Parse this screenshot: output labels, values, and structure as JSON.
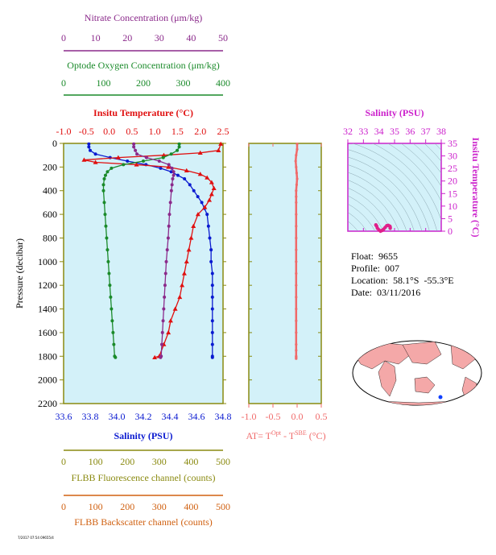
{
  "chart_data": [
    {
      "type": "line",
      "panel": "profile",
      "y_axis": {
        "label": "Pressure (decibar)",
        "range": [
          0,
          2200
        ],
        "inverted": true,
        "ticks": [
          0,
          200,
          400,
          600,
          800,
          1000,
          1200,
          1400,
          1600,
          1800,
          2000,
          2200
        ]
      },
      "axes": [
        {
          "key": "nitrate",
          "label": "Nitrate Concentration (μm/kg)",
          "range": [
            0,
            50
          ],
          "ticks": [
            0,
            10,
            20,
            30,
            40,
            50
          ],
          "color": "#8b2a8b"
        },
        {
          "key": "oxygen",
          "label": "Optode Oxygen Concentration (μm/kg)",
          "range": [
            0,
            400
          ],
          "ticks": [
            0,
            100,
            200,
            300,
            400
          ],
          "color": "#1a8a2a"
        },
        {
          "key": "temperature",
          "label": "Insitu Temperature (°C)",
          "range": [
            -1.0,
            2.5
          ],
          "ticks": [
            "-1.0",
            "-0.5",
            "0.0",
            "0.5",
            "1.0",
            "1.5",
            "2.0",
            "2.5"
          ],
          "color": "#e01010"
        },
        {
          "key": "salinity",
          "label": "Salinity (PSU)",
          "range": [
            33.6,
            34.8
          ],
          "ticks": [
            "33.6",
            "33.8",
            "34.0",
            "34.2",
            "34.4",
            "34.6",
            "34.8"
          ],
          "color": "#0a1ad0"
        },
        {
          "key": "fluorescence",
          "label": "FLBB Fluorescence channel (counts)",
          "range": [
            0,
            500
          ],
          "ticks": [
            0,
            100,
            200,
            300,
            400,
            500
          ],
          "color": "#8a8a10"
        },
        {
          "key": "backscatter",
          "label": "FLBB Backscatter channel (counts)",
          "range": [
            0,
            500
          ],
          "ticks": [
            0,
            100,
            200,
            300,
            400,
            500
          ],
          "color": "#d06010"
        }
      ],
      "series": [
        {
          "key": "salinity",
          "color": "#0a1ad0",
          "x": [
            33.79,
            33.79,
            33.8,
            33.84,
            33.95,
            34.08,
            34.22,
            34.33,
            34.41,
            34.46,
            34.51,
            34.55,
            34.58,
            34.61,
            34.64,
            34.66,
            34.68,
            34.69,
            34.7,
            34.71,
            34.71,
            34.72,
            34.72,
            34.72,
            34.72,
            34.72,
            34.72,
            34.72,
            34.72,
            34.72
          ],
          "y": [
            5,
            30,
            60,
            90,
            120,
            150,
            180,
            210,
            240,
            270,
            300,
            350,
            400,
            450,
            500,
            550,
            600,
            700,
            800,
            900,
            1000,
            1100,
            1200,
            1300,
            1400,
            1500,
            1600,
            1700,
            1800,
            1810
          ]
        },
        {
          "key": "temperature",
          "color": "#e01010",
          "x": [
            2.45,
            2.4,
            2.0,
            1.2,
            0.2,
            -0.55,
            -0.3,
            0.6,
            1.3,
            1.7,
            2.0,
            2.15,
            2.25,
            2.3,
            2.25,
            2.2,
            2.1,
            1.95,
            1.85,
            1.8,
            1.75,
            1.7,
            1.65,
            1.6,
            1.55,
            1.45,
            1.35,
            1.3,
            1.2,
            1.1,
            1.0
          ],
          "y": [
            5,
            60,
            80,
            100,
            120,
            140,
            160,
            180,
            200,
            230,
            260,
            290,
            330,
            380,
            430,
            480,
            540,
            600,
            700,
            800,
            900,
            1000,
            1100,
            1200,
            1300,
            1400,
            1500,
            1600,
            1700,
            1800,
            1810
          ]
        },
        {
          "key": "oxygen",
          "color": "#1a8a2a",
          "x": [
            290,
            290,
            285,
            270,
            250,
            200,
            150,
            120,
            110,
            105,
            102,
            100,
            100,
            102,
            104,
            106,
            108,
            110,
            112,
            114,
            116,
            118,
            120,
            122,
            124,
            126,
            128,
            130
          ],
          "y": [
            5,
            30,
            60,
            90,
            120,
            150,
            180,
            210,
            240,
            270,
            300,
            350,
            400,
            500,
            600,
            700,
            800,
            900,
            1000,
            1100,
            1200,
            1300,
            1400,
            1500,
            1600,
            1700,
            1800,
            1810
          ]
        },
        {
          "key": "nitrate",
          "color": "#8b2a8b",
          "x": [
            22,
            22,
            22.5,
            23,
            26,
            30,
            33,
            34,
            34.5,
            34.5,
            34.2,
            34,
            33.8,
            33.5,
            33.2,
            33,
            32.8,
            32.5,
            32.2,
            32,
            31.8,
            31.6,
            31.4,
            31.2,
            31,
            30.8,
            30.6,
            30.4
          ],
          "y": [
            5,
            30,
            60,
            90,
            120,
            150,
            180,
            210,
            240,
            270,
            300,
            350,
            400,
            500,
            600,
            700,
            800,
            900,
            1000,
            1100,
            1200,
            1300,
            1400,
            1500,
            1600,
            1700,
            1800,
            1810
          ]
        }
      ]
    },
    {
      "type": "line",
      "panel": "delta_t",
      "x_label_parts": {
        "pre": "AT= T",
        "sup1": "Opt",
        "mid": " - T",
        "sup2": "SBE",
        "post": " (°C)"
      },
      "x_range": [
        -1.0,
        0.5
      ],
      "x_ticks": [
        "-1.0",
        "-0.5",
        "0.0",
        "0.5"
      ],
      "y_range": [
        0,
        2200
      ],
      "color": "#f06a6a",
      "series": [
        {
          "name": "",
          "x": [
            0.0,
            0.0,
            -0.02,
            -0.03,
            -0.02,
            -0.01,
            0.0,
            -0.01,
            -0.02,
            -0.02,
            -0.02,
            -0.02,
            -0.02,
            -0.02,
            -0.02,
            -0.02,
            -0.02,
            -0.02,
            -0.02,
            -0.02,
            -0.02,
            -0.02,
            -0.02,
            -0.02,
            -0.02,
            -0.02,
            -0.02
          ],
          "y": [
            5,
            50,
            100,
            150,
            200,
            250,
            300,
            350,
            400,
            450,
            500,
            600,
            700,
            800,
            900,
            1000,
            1100,
            1200,
            1300,
            1400,
            1500,
            1600,
            1700,
            1750,
            1800,
            1810,
            1820
          ]
        }
      ]
    },
    {
      "type": "scatter",
      "panel": "ts_diagram",
      "title": "Salinity (PSU)",
      "x_range": [
        32,
        38
      ],
      "x_ticks": [
        "32",
        "33",
        "34",
        "35",
        "36",
        "37",
        "38"
      ],
      "y_label": "Insitu Temperature (°C)",
      "y_range": [
        0,
        35
      ],
      "y_ticks": [
        "0",
        "5",
        "10",
        "15",
        "20",
        "25",
        "30",
        "35"
      ],
      "color": "#e0208a",
      "points": {
        "x": [
          33.8,
          33.85,
          33.9,
          34.0,
          34.1,
          34.2,
          34.3,
          34.4,
          34.5,
          34.6,
          34.7,
          34.72,
          34.72
        ],
        "y": [
          2.5,
          2.0,
          1.2,
          0.5,
          0.0,
          0.3,
          0.8,
          1.5,
          2.2,
          2.3,
          2.0,
          1.6,
          1.2
        ]
      }
    }
  ],
  "info": {
    "float_label": "Float:",
    "float_value": "9655",
    "profile_label": "Profile:",
    "profile_value": "007",
    "location_label": "Location:",
    "location_value": "58.1°S  -55.3°E",
    "date_label": "Date:",
    "date_value": "03/11/2016"
  },
  "footer_text": "7/2017 07:54 09655/4",
  "map": {
    "ocean_color": "#ffffff",
    "land_color": "#f4a8a8",
    "marker_color": "#1040ff"
  }
}
